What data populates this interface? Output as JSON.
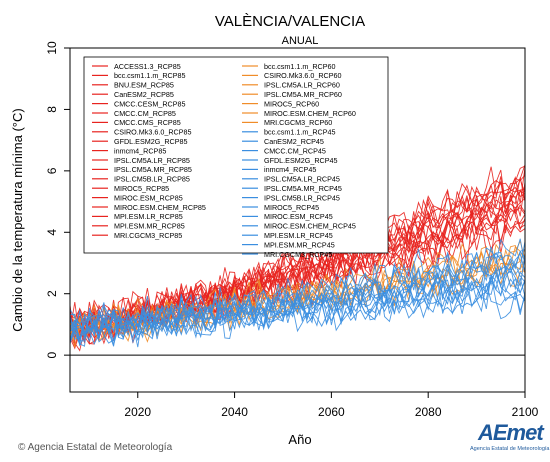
{
  "chart_data": {
    "type": "line",
    "title": "VALÈNCIA/VALENCIA",
    "subtitle": "ANUAL",
    "xlabel": "Año",
    "ylabel": "Cambio de la temperatura mínima (°C)",
    "xlim": [
      2006,
      2100
    ],
    "ylim": [
      -1.2,
      10
    ],
    "xticks": [
      2020,
      2040,
      2060,
      2080,
      2100
    ],
    "yticks": [
      0,
      2,
      4,
      6,
      8,
      10
    ],
    "zero_line": true,
    "legend_placement": "top-left",
    "x_start": 2006,
    "x_end": 2100,
    "scenario_colors": {
      "rcp85": "#e8231f",
      "rcp60": "#f08c28",
      "rcp45": "#3a8ee0"
    },
    "trends": {
      "rcp85": {
        "start": 0.9,
        "end": 5.2,
        "spread": 1.1,
        "noise": 0.55
      },
      "rcp60": {
        "start": 0.9,
        "end": 3.1,
        "spread": 0.6,
        "noise": 0.5
      },
      "rcp45": {
        "start": 0.9,
        "end": 2.5,
        "spread": 0.8,
        "noise": 0.55
      }
    },
    "series": [
      {
        "name": "ACCESS1.3_RCP85",
        "scenario": "rcp85"
      },
      {
        "name": "bcc.csm1.1.m_RCP85",
        "scenario": "rcp85"
      },
      {
        "name": "BNU.ESM_RCP85",
        "scenario": "rcp85"
      },
      {
        "name": "CanESM2_RCP85",
        "scenario": "rcp85"
      },
      {
        "name": "CMCC.CESM_RCP85",
        "scenario": "rcp85"
      },
      {
        "name": "CMCC.CM_RCP85",
        "scenario": "rcp85"
      },
      {
        "name": "CMCC.CMS_RCP85",
        "scenario": "rcp85"
      },
      {
        "name": "CSIRO.Mk3.6.0_RCP85",
        "scenario": "rcp85"
      },
      {
        "name": "GFDL.ESM2G_RCP85",
        "scenario": "rcp85"
      },
      {
        "name": "inmcm4_RCP85",
        "scenario": "rcp85"
      },
      {
        "name": "IPSL.CM5A.LR_RCP85",
        "scenario": "rcp85"
      },
      {
        "name": "IPSL.CM5A.MR_RCP85",
        "scenario": "rcp85"
      },
      {
        "name": "IPSL.CM5B.LR_RCP85",
        "scenario": "rcp85"
      },
      {
        "name": "MIROC5_RCP85",
        "scenario": "rcp85"
      },
      {
        "name": "MIROC.ESM_RCP85",
        "scenario": "rcp85"
      },
      {
        "name": "MIROC.ESM.CHEM_RCP85",
        "scenario": "rcp85"
      },
      {
        "name": "MPI.ESM.LR_RCP85",
        "scenario": "rcp85"
      },
      {
        "name": "MPI.ESM.MR_RCP85",
        "scenario": "rcp85"
      },
      {
        "name": "MRI.CGCM3_RCP85",
        "scenario": "rcp85"
      },
      {
        "name": "bcc.csm1.1.m_RCP60",
        "scenario": "rcp60"
      },
      {
        "name": "CSIRO.Mk3.6.0_RCP60",
        "scenario": "rcp60"
      },
      {
        "name": "IPSL.CM5A.LR_RCP60",
        "scenario": "rcp60"
      },
      {
        "name": "IPSL.CM5A.MR_RCP60",
        "scenario": "rcp60"
      },
      {
        "name": "MIROC5_RCP60",
        "scenario": "rcp60"
      },
      {
        "name": "MIROC.ESM.CHEM_RCP60",
        "scenario": "rcp60"
      },
      {
        "name": "MRI.CGCM3_RCP60",
        "scenario": "rcp60"
      },
      {
        "name": "bcc.csm1.1.m_RCP45",
        "scenario": "rcp45"
      },
      {
        "name": "CanESM2_RCP45",
        "scenario": "rcp45"
      },
      {
        "name": "CMCC.CM_RCP45",
        "scenario": "rcp45"
      },
      {
        "name": "GFDL.ESM2G_RCP45",
        "scenario": "rcp45"
      },
      {
        "name": "inmcm4_RCP45",
        "scenario": "rcp45"
      },
      {
        "name": "IPSL.CM5A.LR_RCP45",
        "scenario": "rcp45"
      },
      {
        "name": "IPSL.CM5A.MR_RCP45",
        "scenario": "rcp45"
      },
      {
        "name": "IPSL.CM5B.LR_RCP45",
        "scenario": "rcp45"
      },
      {
        "name": "MIROC5_RCP45",
        "scenario": "rcp45"
      },
      {
        "name": "MIROC.ESM_RCP45",
        "scenario": "rcp45"
      },
      {
        "name": "MIROC.ESM.CHEM_RCP45",
        "scenario": "rcp45"
      },
      {
        "name": "MPI.ESM.LR_RCP45",
        "scenario": "rcp45"
      },
      {
        "name": "MPI.ESM.MR_RCP45",
        "scenario": "rcp45"
      },
      {
        "name": "MRI.CGCM3_RCP45",
        "scenario": "rcp45"
      }
    ]
  },
  "footer": {
    "credit": "© Agencia Estatal de Meteorología",
    "logo_text": "AEmet",
    "logo_subtext": "Agencia Estatal de Meteorología"
  }
}
